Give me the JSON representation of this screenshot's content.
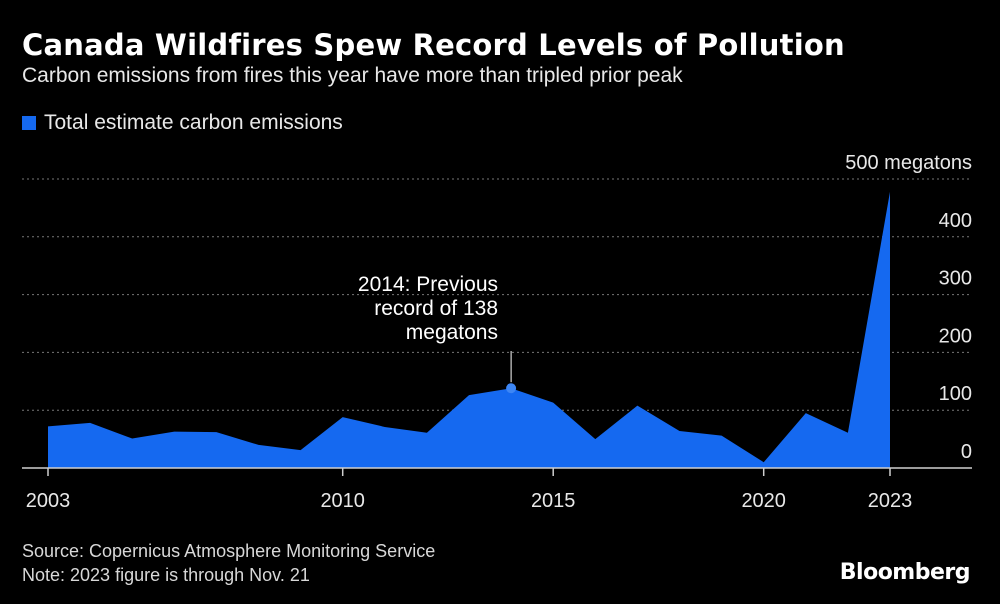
{
  "header": {
    "title": "Canada Wildfires Spew Record Levels of Pollution",
    "subtitle": "Carbon emissions from fires this year have more than tripled prior peak"
  },
  "footer": {
    "source": "Source: Copernicus Atmosphere Monitoring Service",
    "note": "Note: 2023 figure is through Nov. 21",
    "brand": "Bloomberg"
  },
  "colors": {
    "series": "#1569f0",
    "grid": "#777777",
    "text": "#ffffff"
  },
  "chart_data": {
    "type": "area",
    "title": "Canada Wildfires Spew Record Levels of Pollution",
    "subtitle": "Carbon emissions from fires this year have more than tripled prior peak",
    "x": [
      2003,
      2004,
      2005,
      2006,
      2007,
      2008,
      2009,
      2010,
      2011,
      2012,
      2013,
      2014,
      2015,
      2016,
      2017,
      2018,
      2019,
      2020,
      2021,
      2022,
      2023
    ],
    "series": [
      {
        "name": "Total estimate carbon emissions",
        "values": [
          72,
          78,
          51,
          63,
          62,
          40,
          31,
          88,
          71,
          61,
          126,
          138,
          113,
          50,
          108,
          64,
          56,
          10,
          95,
          61,
          478
        ]
      }
    ],
    "ylim": [
      0,
      500
    ],
    "yticks": [
      0,
      100,
      200,
      300,
      400,
      500
    ],
    "ytick_labels": [
      "0",
      "100",
      "200",
      "300",
      "400",
      "500 megatons"
    ],
    "xticks": [
      2003,
      2010,
      2015,
      2020,
      2023
    ],
    "xtick_labels": [
      "2003",
      "2010",
      "2015",
      "2020",
      "2023"
    ],
    "grid": true,
    "legend": "top-left",
    "annotation": {
      "x": 2014,
      "y": 138,
      "lines": [
        "2014: Previous",
        "record of 138",
        "megatons"
      ]
    }
  }
}
